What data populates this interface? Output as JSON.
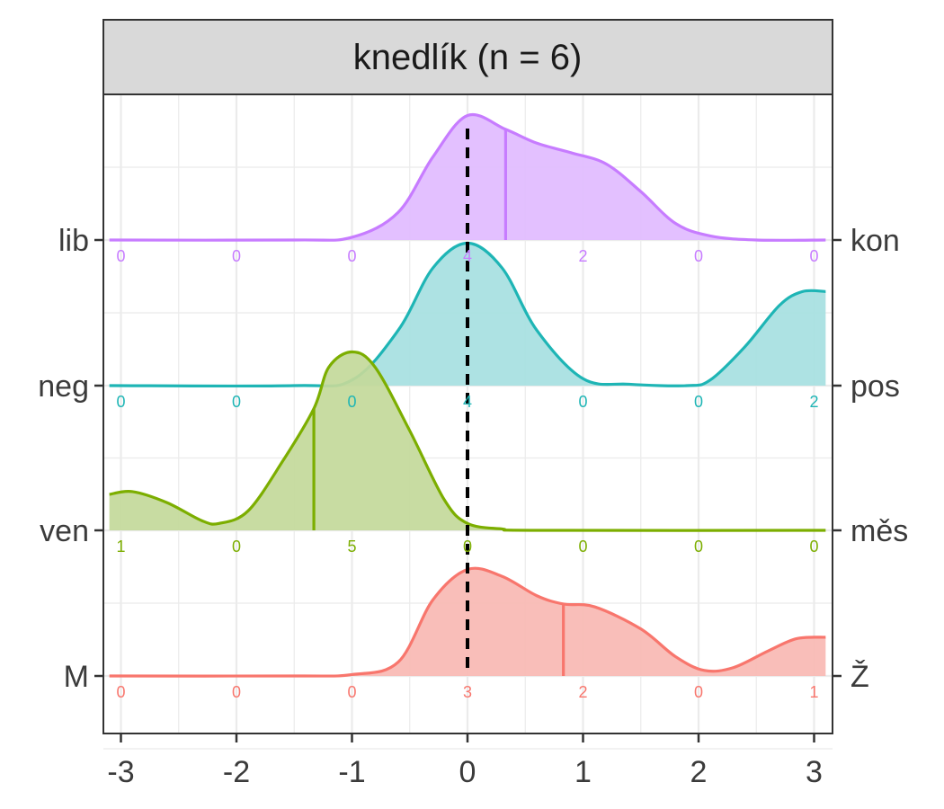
{
  "chart_data": {
    "type": "ridgeline-density",
    "facet_title": "knedlík (n = 6)",
    "x_ticks": [
      -3,
      -2,
      -1,
      0,
      1,
      2,
      3
    ],
    "x_range": [
      -3.1,
      3.1
    ],
    "reference_line_x": 0,
    "series": [
      {
        "left_label": "M",
        "right_label": "Ž",
        "color": "#F8766D",
        "fill": "#F8B8B3",
        "mean": 0.83,
        "counts": [
          0,
          0,
          0,
          3,
          2,
          0,
          1
        ],
        "density": [
          [
            -3.1,
            0
          ],
          [
            -1.5,
            0
          ],
          [
            -1,
            0.01
          ],
          [
            -0.6,
            0.1
          ],
          [
            -0.3,
            0.55
          ],
          [
            0,
            0.77
          ],
          [
            0.3,
            0.72
          ],
          [
            0.6,
            0.58
          ],
          [
            0.83,
            0.52
          ],
          [
            1.1,
            0.5
          ],
          [
            1.5,
            0.34
          ],
          [
            1.8,
            0.14
          ],
          [
            2.05,
            0.04
          ],
          [
            2.3,
            0.06
          ],
          [
            2.6,
            0.18
          ],
          [
            2.85,
            0.27
          ],
          [
            3.1,
            0.28
          ]
        ]
      },
      {
        "left_label": "ven",
        "right_label": "měs",
        "color": "#7CAE00",
        "fill": "#C3D99A",
        "mean": -1.33,
        "counts": [
          1,
          0,
          5,
          0,
          0,
          0,
          0
        ],
        "density": [
          [
            -3.1,
            0.26
          ],
          [
            -2.9,
            0.28
          ],
          [
            -2.6,
            0.2
          ],
          [
            -2.3,
            0.07
          ],
          [
            -2.15,
            0.05
          ],
          [
            -1.9,
            0.14
          ],
          [
            -1.6,
            0.5
          ],
          [
            -1.33,
            0.88
          ],
          [
            -1.2,
            1.18
          ],
          [
            -1,
            1.29
          ],
          [
            -0.8,
            1.18
          ],
          [
            -0.5,
            0.72
          ],
          [
            -0.2,
            0.22
          ],
          [
            0,
            0.05
          ],
          [
            0.3,
            0.01
          ],
          [
            0.6,
            0
          ],
          [
            3.1,
            0
          ]
        ]
      },
      {
        "left_label": "neg",
        "right_label": "pos",
        "color": "#1EB5B5",
        "fill": "#A6E0E1",
        "mean": null,
        "counts": [
          0,
          0,
          0,
          4,
          0,
          0,
          2
        ],
        "density": [
          [
            -3.1,
            0
          ],
          [
            -1.5,
            0
          ],
          [
            -1,
            0.04
          ],
          [
            -0.6,
            0.4
          ],
          [
            -0.3,
            0.85
          ],
          [
            0,
            1.03
          ],
          [
            0.3,
            0.85
          ],
          [
            0.6,
            0.4
          ],
          [
            1,
            0.05
          ],
          [
            1.4,
            0.01
          ],
          [
            1.9,
            0
          ],
          [
            2.1,
            0.04
          ],
          [
            2.4,
            0.28
          ],
          [
            2.7,
            0.58
          ],
          [
            2.9,
            0.68
          ],
          [
            3.1,
            0.68
          ]
        ]
      },
      {
        "left_label": "lib",
        "right_label": "kon",
        "color": "#C77CFF",
        "fill": "#E1BBFF",
        "mean": 0.33,
        "counts": [
          0,
          0,
          0,
          4,
          2,
          0,
          0
        ],
        "density": [
          [
            -3.1,
            0
          ],
          [
            -1.5,
            0
          ],
          [
            -1,
            0.02
          ],
          [
            -0.6,
            0.2
          ],
          [
            -0.3,
            0.6
          ],
          [
            0,
            0.9
          ],
          [
            0.33,
            0.8
          ],
          [
            0.6,
            0.7
          ],
          [
            0.9,
            0.63
          ],
          [
            1.2,
            0.55
          ],
          [
            1.5,
            0.35
          ],
          [
            1.8,
            0.12
          ],
          [
            2.1,
            0.03
          ],
          [
            2.5,
            0
          ],
          [
            3.1,
            0
          ]
        ]
      }
    ]
  }
}
